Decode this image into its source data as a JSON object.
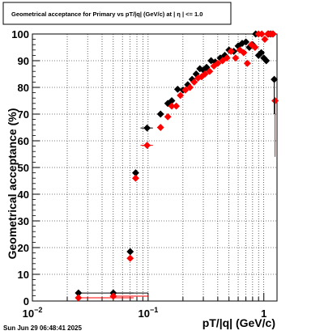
{
  "chart_data": {
    "type": "scatter",
    "title": "Geometrical acceptance for Primary vs pT/|q| (GeV/c) at |  η  | <= 1.0",
    "xlabel": "pT/|q| (GeV/c)",
    "ylabel": "Geometrical acceptance (%)",
    "x_scale": "log",
    "xlim": [
      0.01,
      1.3
    ],
    "ylim": [
      0,
      100
    ],
    "x_ticks": [
      {
        "value": 0.01,
        "label": "10",
        "exp": "−2"
      },
      {
        "value": 0.1,
        "label": "10",
        "exp": "−1"
      },
      {
        "value": 1,
        "label": "1",
        "exp": ""
      }
    ],
    "y_ticks": [
      0,
      10,
      20,
      30,
      40,
      50,
      60,
      70,
      80,
      90,
      100
    ],
    "grid": true,
    "series": [
      {
        "color": "#000000",
        "marker": "diamond",
        "points": [
          {
            "x": 0.025,
            "y": 3.0,
            "xlo": 0.0,
            "xhi": 0.05
          },
          {
            "x": 0.05,
            "y": 3.0,
            "xlo": 0.0,
            "xhi": 0.05
          },
          {
            "x": 0.07,
            "y": 18.5,
            "xlo": 0.0,
            "xhi": 0.0
          },
          {
            "x": 0.078,
            "y": 48.0,
            "xlo": 0.0,
            "xhi": 0.0
          },
          {
            "x": 0.098,
            "y": 64.8,
            "xlo": 0.012,
            "xhi": 0.012
          },
          {
            "x": 0.128,
            "y": 70.0
          },
          {
            "x": 0.148,
            "y": 74.0
          },
          {
            "x": 0.16,
            "y": 75.0
          },
          {
            "x": 0.18,
            "y": 79.3
          },
          {
            "x": 0.2,
            "y": 79.0
          },
          {
            "x": 0.22,
            "y": 81.0
          },
          {
            "x": 0.24,
            "y": 83.0
          },
          {
            "x": 0.26,
            "y": 85.0
          },
          {
            "x": 0.28,
            "y": 87.0
          },
          {
            "x": 0.3,
            "y": 86.5
          },
          {
            "x": 0.32,
            "y": 87.5
          },
          {
            "x": 0.35,
            "y": 90.0
          },
          {
            "x": 0.38,
            "y": 89.5
          },
          {
            "x": 0.42,
            "y": 91.0
          },
          {
            "x": 0.46,
            "y": 92.0
          },
          {
            "x": 0.5,
            "y": 94.0
          },
          {
            "x": 0.55,
            "y": 93.5
          },
          {
            "x": 0.6,
            "y": 95.5
          },
          {
            "x": 0.65,
            "y": 96.5
          },
          {
            "x": 0.7,
            "y": 97.0
          },
          {
            "x": 0.75,
            "y": 95.0
          },
          {
            "x": 0.8,
            "y": 96.0
          },
          {
            "x": 0.85,
            "y": 100.0
          },
          {
            "x": 0.9,
            "y": 92.0
          },
          {
            "x": 0.95,
            "y": 93.0
          },
          {
            "x": 1.0,
            "y": 91.0
          },
          {
            "x": 1.05,
            "y": 90.0
          },
          {
            "x": 1.1,
            "y": 100.0
          },
          {
            "x": 1.15,
            "y": 100.0
          },
          {
            "x": 1.2,
            "y": 100.0
          },
          {
            "x": 1.23,
            "y": 83.0
          }
        ]
      },
      {
        "color": "#ff0000",
        "marker": "diamond",
        "points": [
          {
            "x": 0.025,
            "y": 1.2,
            "xlo": 0.0,
            "xhi": 0.05
          },
          {
            "x": 0.05,
            "y": 1.8,
            "xlo": 0.0,
            "xhi": 0.05
          },
          {
            "x": 0.07,
            "y": 16.0
          },
          {
            "x": 0.078,
            "y": 46.0
          },
          {
            "x": 0.098,
            "y": 58.3,
            "xlo": 0.012,
            "xhi": 0.012
          },
          {
            "x": 0.128,
            "y": 65.0
          },
          {
            "x": 0.148,
            "y": 69.0
          },
          {
            "x": 0.16,
            "y": 73.0
          },
          {
            "x": 0.175,
            "y": 73.0
          },
          {
            "x": 0.19,
            "y": 77.0
          },
          {
            "x": 0.21,
            "y": 79.0
          },
          {
            "x": 0.23,
            "y": 80.0
          },
          {
            "x": 0.25,
            "y": 82.0
          },
          {
            "x": 0.27,
            "y": 83.5
          },
          {
            "x": 0.29,
            "y": 84.0
          },
          {
            "x": 0.31,
            "y": 85.0
          },
          {
            "x": 0.34,
            "y": 86.0
          },
          {
            "x": 0.37,
            "y": 88.0
          },
          {
            "x": 0.4,
            "y": 89.0
          },
          {
            "x": 0.44,
            "y": 90.0
          },
          {
            "x": 0.48,
            "y": 91.0
          },
          {
            "x": 0.52,
            "y": 93.5
          },
          {
            "x": 0.57,
            "y": 91.0
          },
          {
            "x": 0.62,
            "y": 94.0
          },
          {
            "x": 0.67,
            "y": 93.0
          },
          {
            "x": 0.72,
            "y": 89.0
          },
          {
            "x": 0.78,
            "y": 96.0
          },
          {
            "x": 0.84,
            "y": 95.0
          },
          {
            "x": 0.9,
            "y": 100.0
          },
          {
            "x": 0.96,
            "y": 100.0
          },
          {
            "x": 1.02,
            "y": 98.0
          },
          {
            "x": 1.08,
            "y": 100.0
          },
          {
            "x": 1.14,
            "y": 100.0
          },
          {
            "x": 1.2,
            "y": 100.0
          },
          {
            "x": 1.25,
            "y": 75.0
          }
        ]
      }
    ]
  },
  "timestamp": "Sun Jun 29 06:48:41 2025"
}
